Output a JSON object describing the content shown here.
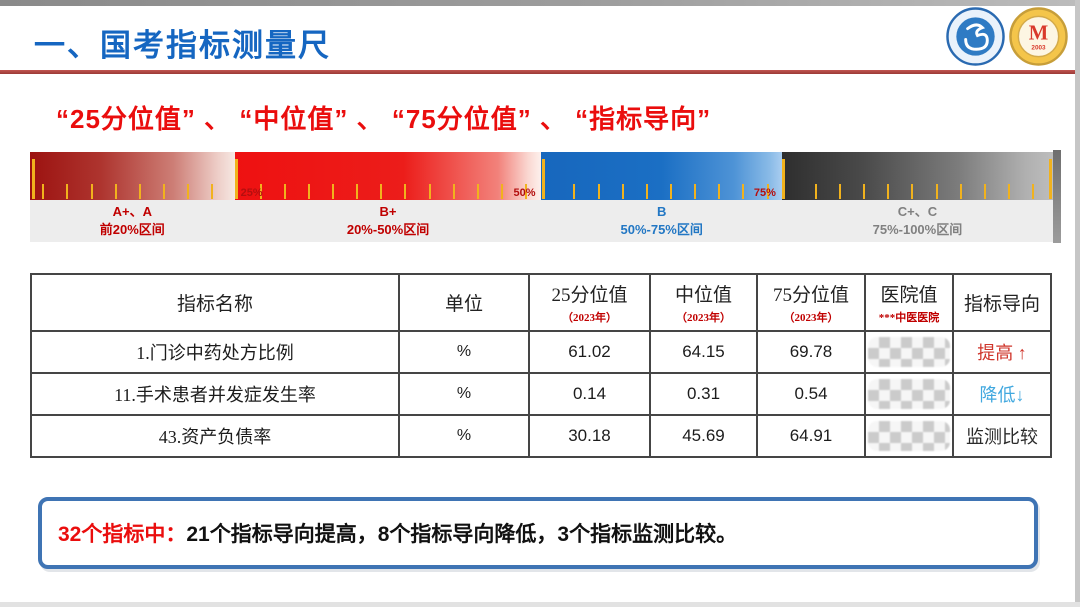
{
  "header": {
    "title": "一、国考指标测量尺",
    "gold_logo": {
      "emblem": "M",
      "year": "2003"
    }
  },
  "subtitle": "“25分位值” 、 “中位值” 、 “75分位值” 、 “指标导向”",
  "ruler": {
    "tick_color": "#f1b21d",
    "boundary_label_color": "#b40f0f",
    "boundary_labels": [
      {
        "text": "25%",
        "pos_pct": 20,
        "side": "right"
      },
      {
        "text": "50%",
        "pos_pct": 50,
        "side": "left"
      },
      {
        "text": "75%",
        "pos_pct": 73.5,
        "side": "left"
      }
    ],
    "segments": [
      {
        "grade": "A+、A",
        "range": "前20%区间",
        "width_pct": 20,
        "label_color": "#c00000",
        "gradient": "linear-gradient(90deg,#9c1210 0%,#ae352f 35%,#cd7e76 70%,#eecfc9 92%,#f6e8e3 100%)"
      },
      {
        "grade": "B+",
        "range": "20%-50%区间",
        "width_pct": 30,
        "label_color": "#c00000",
        "gradient": "linear-gradient(90deg,#ee1111 0%,#ec1d1a 55%,#f2827b 86%,#fad9d3 96%,#fdf0ec 100%)"
      },
      {
        "grade": "B",
        "range": "50%-75%区间",
        "width_pct": 23.5,
        "label_color": "#2277c4",
        "gradient": "linear-gradient(90deg,#1767bd 0%,#1b6fc4 50%,#4e93d6 80%,#8abbe7 95%,#a9cdf0 100%)"
      },
      {
        "grade": "C+、C",
        "range": "75%-100%区间",
        "width_pct": 26.5,
        "label_color": "#808080",
        "gradient": "linear-gradient(90deg,#2e2e2e 0%,#4a4a4a 30%,#7c7c7c 65%,#b0b0b0 90%,#bdbdbd 100%)"
      }
    ]
  },
  "table": {
    "columns": [
      {
        "label": "指标名称",
        "sub": ""
      },
      {
        "label": "单位",
        "sub": ""
      },
      {
        "label": "25分位值",
        "sub": "（2023年）"
      },
      {
        "label": "中位值",
        "sub": "（2023年）"
      },
      {
        "label": "75分位值",
        "sub": "（2023年）"
      },
      {
        "label": "医院值",
        "sub": "***中医医院"
      },
      {
        "label": "指标导向",
        "sub": ""
      }
    ],
    "rows": [
      {
        "name": "1.门诊中药处方比例",
        "unit": "%",
        "p25": "61.02",
        "median": "64.15",
        "p75": "69.78",
        "hospital_value_masked": true,
        "direction": "提高 ↑",
        "direction_color": "#cf352b"
      },
      {
        "name": "11.手术患者并发症发生率",
        "unit": "%",
        "p25": "0.14",
        "median": "0.31",
        "p75": "0.54",
        "hospital_value_masked": true,
        "direction": "降低↓",
        "direction_color": "#41a8df"
      },
      {
        "name": "43.资产负债率",
        "unit": "%",
        "p25": "30.18",
        "median": "45.69",
        "p75": "64.91",
        "hospital_value_masked": true,
        "direction": "监测比较",
        "direction_color": "#2b2b2b"
      }
    ]
  },
  "summary": {
    "lead": "32个指标中：",
    "body": "21个指标导向提高，8个指标导向降低，3个指标监测比较。"
  }
}
